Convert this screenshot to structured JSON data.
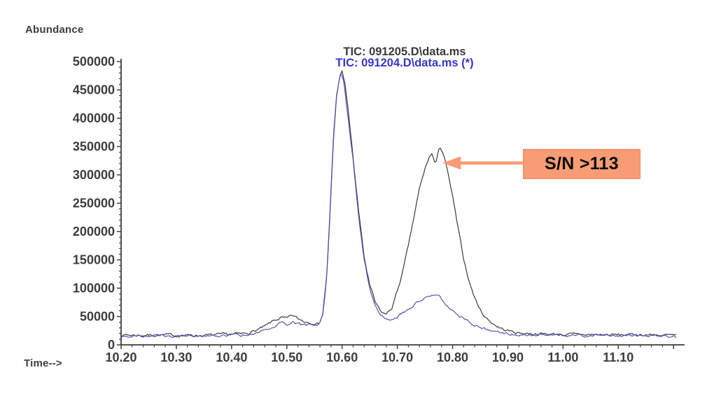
{
  "chart_data": {
    "type": "line",
    "title_lines": [
      {
        "text": "TIC: 091205.D\\data.ms",
        "color": "#3a3a3a"
      },
      {
        "text": "TIC: 091204.D\\data.ms (*)",
        "color": "#3636cb"
      }
    ],
    "ylabel": "Abundance",
    "xlabel": "Time-->",
    "xlim": [
      10.2,
      11.22
    ],
    "ylim": [
      0,
      500000
    ],
    "grid": false,
    "legend_position": "none",
    "x_ticks": [
      {
        "t": 10.2,
        "label": "10.20"
      },
      {
        "t": 10.3,
        "label": "10.30"
      },
      {
        "t": 10.4,
        "label": "10.40"
      },
      {
        "t": 10.5,
        "label": "10.50"
      },
      {
        "t": 10.6,
        "label": "10.60"
      },
      {
        "t": 10.7,
        "label": "10.70"
      },
      {
        "t": 10.8,
        "label": "10.80"
      },
      {
        "t": 10.9,
        "label": "10.90"
      },
      {
        "t": 11.0,
        "label": "11.00"
      },
      {
        "t": 11.1,
        "label": "11.10"
      },
      {
        "t": 11.2,
        "label": ""
      }
    ],
    "x_minor_step": 0.02,
    "y_ticks": [
      {
        "v": 0,
        "label": "0"
      },
      {
        "v": 50000,
        "label": "50000"
      },
      {
        "v": 100000,
        "label": "100000"
      },
      {
        "v": 150000,
        "label": "150000"
      },
      {
        "v": 200000,
        "label": "200000"
      },
      {
        "v": 250000,
        "label": "250000"
      },
      {
        "v": 300000,
        "label": "300000"
      },
      {
        "v": 350000,
        "label": "350000"
      },
      {
        "v": 400000,
        "label": "400000"
      },
      {
        "v": 450000,
        "label": "450000"
      },
      {
        "v": 500000,
        "label": "500000"
      }
    ],
    "y_minor_step": 10000,
    "axis_color": "#3f3f3f",
    "series": [
      {
        "name": "TIC: 091205.D\\data.ms",
        "color": "#3b3b3b",
        "anchors": [
          [
            10.2,
            17500
          ],
          [
            10.24,
            17000
          ],
          [
            10.28,
            17500
          ],
          [
            10.32,
            16500
          ],
          [
            10.36,
            17000
          ],
          [
            10.4,
            18500
          ],
          [
            10.42,
            19500
          ],
          [
            10.44,
            24000
          ],
          [
            10.46,
            32000
          ],
          [
            10.475,
            42000
          ],
          [
            10.49,
            48000
          ],
          [
            10.5,
            46000
          ],
          [
            10.51,
            52000
          ],
          [
            10.52,
            46000
          ],
          [
            10.53,
            42000
          ],
          [
            10.54,
            40000
          ],
          [
            10.55,
            38000
          ],
          [
            10.558,
            37000
          ],
          [
            10.565,
            55000
          ],
          [
            10.572,
            120000
          ],
          [
            10.578,
            230000
          ],
          [
            10.584,
            360000
          ],
          [
            10.59,
            440000
          ],
          [
            10.595,
            468000
          ],
          [
            10.6,
            485000
          ],
          [
            10.605,
            462000
          ],
          [
            10.612,
            405000
          ],
          [
            10.62,
            330000
          ],
          [
            10.63,
            235000
          ],
          [
            10.64,
            155000
          ],
          [
            10.65,
            105000
          ],
          [
            10.66,
            75000
          ],
          [
            10.67,
            58000
          ],
          [
            10.68,
            54000
          ],
          [
            10.69,
            65000
          ],
          [
            10.7,
            95000
          ],
          [
            10.71,
            130000
          ],
          [
            10.72,
            175000
          ],
          [
            10.73,
            225000
          ],
          [
            10.74,
            275000
          ],
          [
            10.75,
            310000
          ],
          [
            10.757,
            330000
          ],
          [
            10.763,
            338000
          ],
          [
            10.769,
            315000
          ],
          [
            10.776,
            352000
          ],
          [
            10.783,
            338000
          ],
          [
            10.79,
            310000
          ],
          [
            10.8,
            262000
          ],
          [
            10.81,
            205000
          ],
          [
            10.82,
            152000
          ],
          [
            10.83,
            112000
          ],
          [
            10.84,
            83000
          ],
          [
            10.85,
            62000
          ],
          [
            10.86,
            48000
          ],
          [
            10.87,
            40000
          ],
          [
            10.88,
            33000
          ],
          [
            10.89,
            28000
          ],
          [
            10.9,
            25000
          ],
          [
            10.92,
            21000
          ],
          [
            10.95,
            19500
          ],
          [
            11.0,
            18500
          ],
          [
            11.05,
            18000
          ],
          [
            11.1,
            17500
          ],
          [
            11.15,
            18000
          ],
          [
            11.205,
            16500
          ]
        ]
      },
      {
        "name": "TIC: 091204.D\\data.ms (*)",
        "color": "#5353b5",
        "anchors": [
          [
            10.2,
            16000
          ],
          [
            10.24,
            16500
          ],
          [
            10.28,
            16000
          ],
          [
            10.32,
            15800
          ],
          [
            10.36,
            16200
          ],
          [
            10.4,
            17000
          ],
          [
            10.42,
            17500
          ],
          [
            10.44,
            20000
          ],
          [
            10.46,
            26000
          ],
          [
            10.475,
            33000
          ],
          [
            10.49,
            38000
          ],
          [
            10.5,
            36000
          ],
          [
            10.51,
            40000
          ],
          [
            10.52,
            36000
          ],
          [
            10.53,
            34000
          ],
          [
            10.54,
            35000
          ],
          [
            10.55,
            36000
          ],
          [
            10.558,
            36000
          ],
          [
            10.565,
            52000
          ],
          [
            10.572,
            118000
          ],
          [
            10.578,
            228000
          ],
          [
            10.584,
            358000
          ],
          [
            10.59,
            437000
          ],
          [
            10.594,
            465000
          ],
          [
            10.598,
            480000
          ],
          [
            10.604,
            458000
          ],
          [
            10.611,
            400000
          ],
          [
            10.62,
            325000
          ],
          [
            10.63,
            228000
          ],
          [
            10.64,
            150000
          ],
          [
            10.65,
            100000
          ],
          [
            10.66,
            70000
          ],
          [
            10.668,
            54000
          ],
          [
            10.676,
            47000
          ],
          [
            10.685,
            44000
          ],
          [
            10.695,
            48000
          ],
          [
            10.705,
            53000
          ],
          [
            10.715,
            60000
          ],
          [
            10.725,
            67000
          ],
          [
            10.735,
            74000
          ],
          [
            10.745,
            80000
          ],
          [
            10.755,
            84000
          ],
          [
            10.762,
            88000
          ],
          [
            10.768,
            90000
          ],
          [
            10.775,
            85000
          ],
          [
            10.785,
            75000
          ],
          [
            10.795,
            65000
          ],
          [
            10.81,
            52000
          ],
          [
            10.83,
            40000
          ],
          [
            10.85,
            31000
          ],
          [
            10.87,
            24000
          ],
          [
            10.9,
            19000
          ],
          [
            10.95,
            17000
          ],
          [
            11.0,
            16500
          ],
          [
            11.05,
            16000
          ],
          [
            11.1,
            16500
          ],
          [
            11.15,
            15500
          ],
          [
            11.205,
            15000
          ]
        ]
      }
    ],
    "noise": {
      "amplitude": 2600,
      "seed": 7,
      "step": 0.0025,
      "end": 11.205
    },
    "annotation": {
      "label": "S/N >113",
      "box_color": "#f79c74",
      "border_color": "#ed8a5f",
      "text_color": "#0a0a0a",
      "arrow_color": "#f79c74",
      "arrow_time": 10.782,
      "arrow_value": 321000
    }
  }
}
